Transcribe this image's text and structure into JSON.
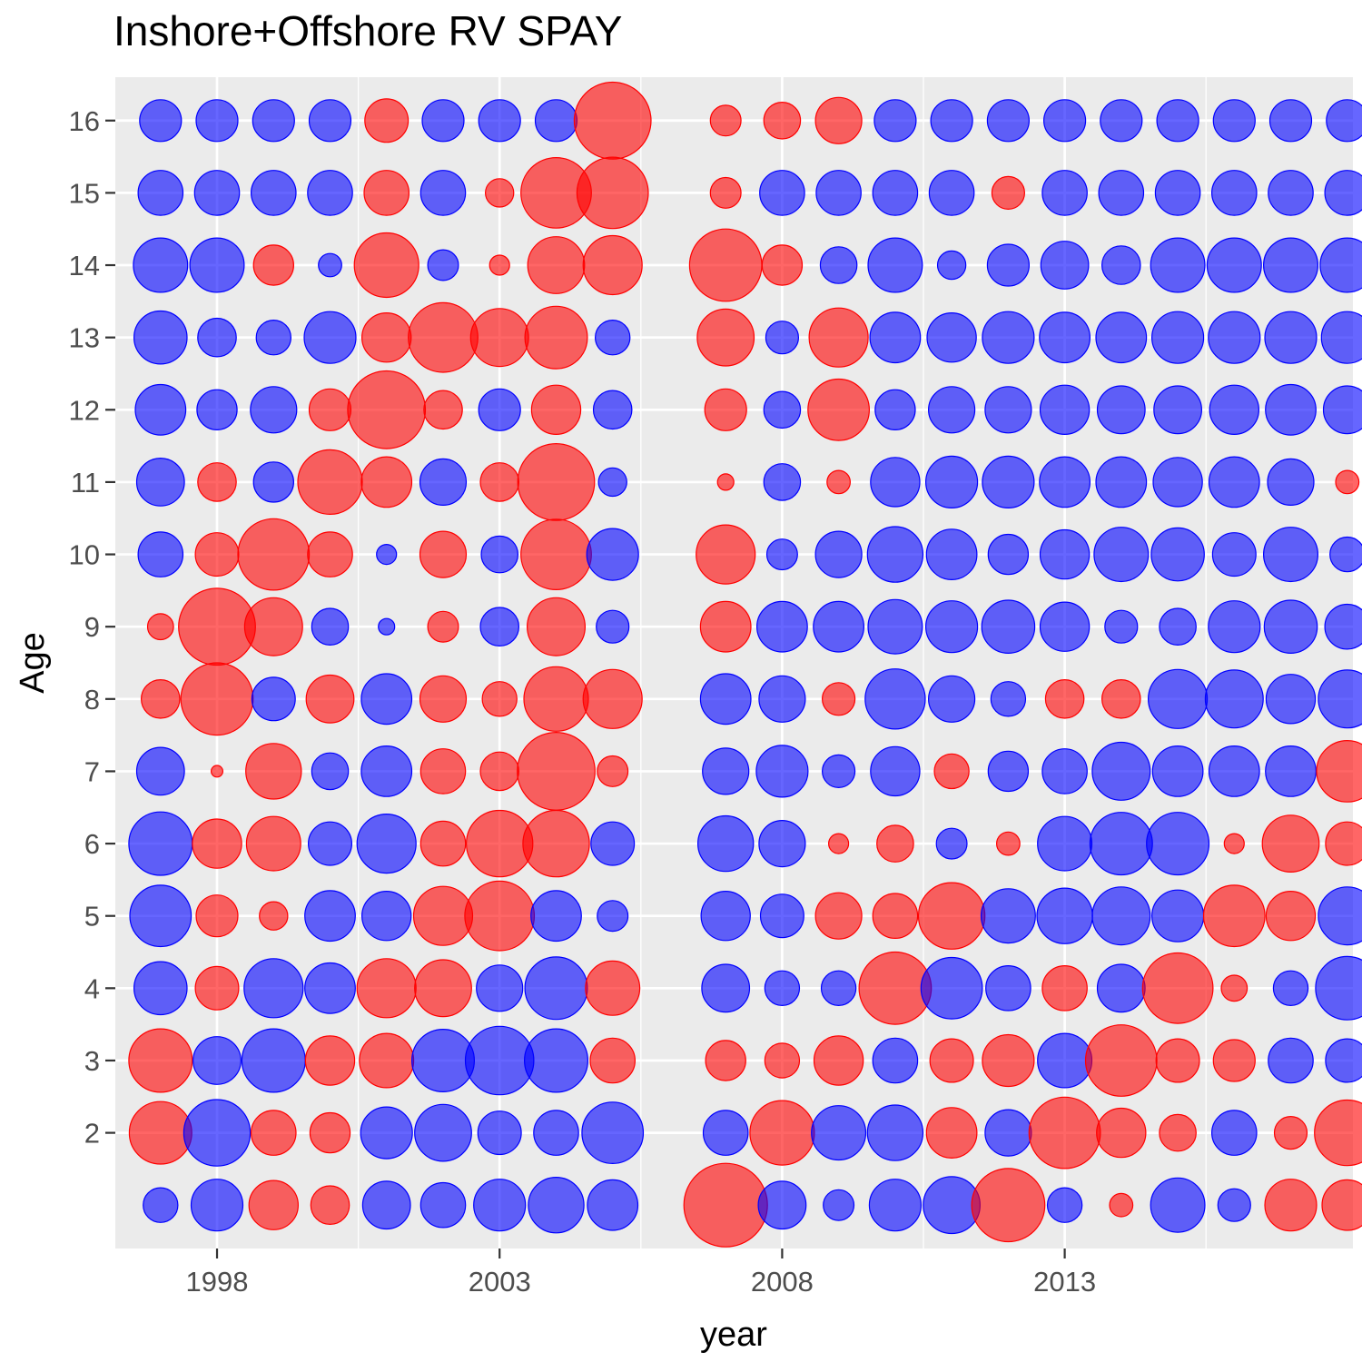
{
  "chart_data": {
    "type": "scatter",
    "title": "Inshore+Offshore RV SPAY",
    "xlabel": "year",
    "ylabel": "Age",
    "x_ticks": [
      "1998",
      "2003",
      "2008",
      "2013"
    ],
    "x_tick_values": [
      1998,
      2003,
      2008,
      2013
    ],
    "y_ticks": [
      "2",
      "3",
      "4",
      "5",
      "6",
      "7",
      "8",
      "9",
      "10",
      "11",
      "12",
      "13",
      "14",
      "15",
      "16"
    ],
    "y_tick_values": [
      2,
      3,
      4,
      5,
      6,
      7,
      8,
      9,
      10,
      11,
      12,
      13,
      14,
      15,
      16
    ],
    "xlim": [
      1996.2,
      2018.1
    ],
    "ylim": [
      0.4,
      16.6
    ],
    "grid": true,
    "legend": "none",
    "encoding": "circle area = residual magnitude; blue = positive, red = negative",
    "colors": {
      "positive": "#0000ff",
      "negative": "#ff0000",
      "panel": "#ebebeb",
      "grid": "#ffffff",
      "fill_opacity": 0.6
    },
    "years": [
      1997,
      1998,
      1999,
      2000,
      2001,
      2002,
      2003,
      2004,
      2005,
      2007,
      2008,
      2009,
      2010,
      2011,
      2012,
      2013,
      2014,
      2015,
      2016,
      2017,
      2018
    ],
    "ages": [
      1,
      2,
      3,
      4,
      5,
      6,
      7,
      8,
      9,
      10,
      11,
      12,
      13,
      14,
      15,
      16
    ],
    "values": [
      [
        0.9,
        2.0,
        -1.8,
        -1.1,
        1.7,
        1.5,
        2.0,
        2.3,
        1.9,
        -5.2,
        1.7,
        0.7,
        2.0,
        2.4,
        -4.0,
        0.9,
        -0.4,
        2.2,
        0.8,
        -2.0,
        -1.9
      ],
      [
        -2.9,
        3.3,
        -1.5,
        -1.2,
        2.0,
        2.4,
        1.4,
        1.5,
        2.8,
        1.5,
        -3.1,
        2.2,
        2.3,
        -1.9,
        1.6,
        -3.8,
        -1.8,
        -1.0,
        1.5,
        -0.8,
        -3.2
      ],
      [
        -3.0,
        1.7,
        3.0,
        -1.8,
        -2.2,
        2.9,
        3.5,
        3.0,
        -1.5,
        -1.2,
        -0.9,
        -1.8,
        1.5,
        -1.4,
        -2.0,
        2.2,
        -3.8,
        -1.4,
        -1.3,
        1.5,
        1.4
      ],
      [
        2.1,
        -1.4,
        2.6,
        1.9,
        -2.6,
        -2.4,
        1.6,
        2.9,
        -2.2,
        1.7,
        0.9,
        0.9,
        -3.9,
        2.8,
        1.5,
        -1.5,
        1.7,
        -3.7,
        -0.5,
        0.9,
        3.0
      ],
      [
        2.8,
        -1.3,
        -0.6,
        1.9,
        1.8,
        -2.6,
        -3.6,
        1.9,
        0.7,
        1.8,
        1.4,
        -1.6,
        -1.5,
        -3.3,
        2.2,
        2.3,
        2.5,
        2.0,
        -2.8,
        -1.8,
        2.5
      ],
      [
        3.0,
        -1.8,
        -2.2,
        1.4,
        2.6,
        -1.5,
        -3.3,
        -3.3,
        1.4,
        2.3,
        1.6,
        -0.3,
        -1.0,
        0.7,
        -0.4,
        2.2,
        2.9,
        2.9,
        -0.3,
        -2.4,
        -1.4
      ],
      [
        1.7,
        -0.1,
        -2.3,
        1.0,
        1.9,
        -1.5,
        -1.1,
        -4.5,
        -0.7,
        1.6,
        2.0,
        0.8,
        1.8,
        -0.9,
        1.2,
        1.5,
        2.5,
        1.9,
        1.9,
        1.9,
        -2.8
      ],
      [
        -1.1,
        -3.9,
        1.4,
        -1.7,
        1.9,
        -1.6,
        -0.9,
        -3.1,
        -2.6,
        1.9,
        1.6,
        -0.8,
        2.7,
        1.6,
        0.9,
        -1.1,
        -1.1,
        2.6,
        2.5,
        1.8,
        2.5
      ],
      [
        -0.5,
        -4.4,
        -2.5,
        1.0,
        0.2,
        -0.7,
        1.1,
        -2.5,
        0.8,
        -1.9,
        1.9,
        1.9,
        2.2,
        2.0,
        2.1,
        1.8,
        0.8,
        1.0,
        2.0,
        2.1,
        1.5
      ],
      [
        1.5,
        -1.4,
        -3.8,
        -1.5,
        0.3,
        -1.6,
        1.0,
        -3.7,
        2.0,
        -2.6,
        0.7,
        1.6,
        2.3,
        1.9,
        1.2,
        1.8,
        2.2,
        2.1,
        1.4,
        2.2,
        0.9
      ],
      [
        1.7,
        -1.1,
        1.2,
        -3.1,
        -1.9,
        1.6,
        -1.1,
        -4.4,
        0.6,
        -0.2,
        1.0,
        -0.4,
        1.8,
        2.0,
        2.0,
        1.9,
        1.9,
        1.8,
        1.9,
        1.6,
        -0.4
      ],
      [
        1.9,
        1.2,
        1.6,
        -1.3,
        -4.5,
        -1.1,
        1.3,
        -1.8,
        1.1,
        -1.3,
        1.0,
        -2.8,
        1.2,
        1.6,
        1.6,
        1.8,
        1.7,
        1.7,
        1.8,
        1.9,
        1.7
      ],
      [
        2.1,
        1.1,
        0.9,
        2.0,
        -1.8,
        -3.6,
        -2.5,
        -2.9,
        0.9,
        -2.4,
        0.8,
        -2.6,
        1.9,
        1.8,
        2.0,
        1.9,
        1.9,
        2.0,
        2.0,
        2.0,
        2.0
      ],
      [
        2.2,
        2.2,
        -1.2,
        0.4,
        -3.1,
        0.7,
        -0.3,
        -2.4,
        -2.6,
        -3.9,
        -1.2,
        1.0,
        2.2,
        0.6,
        1.3,
        1.7,
        1.1,
        2.2,
        2.2,
        2.2,
        2.2
      ],
      [
        1.5,
        1.5,
        1.5,
        1.5,
        -1.5,
        1.5,
        -0.6,
        -3.7,
        -3.8,
        -0.7,
        1.5,
        1.5,
        1.5,
        1.5,
        -0.8,
        1.5,
        1.5,
        1.5,
        1.5,
        1.5,
        1.5
      ],
      [
        1.3,
        1.3,
        1.3,
        1.3,
        -1.4,
        1.3,
        1.3,
        1.3,
        -4.4,
        -0.7,
        -1.0,
        -1.6,
        1.3,
        1.3,
        1.3,
        1.3,
        1.3,
        1.3,
        1.3,
        1.3,
        1.3
      ]
    ]
  }
}
